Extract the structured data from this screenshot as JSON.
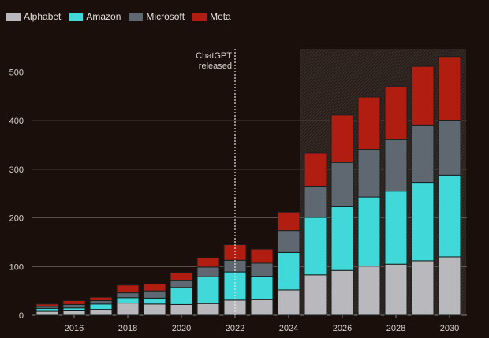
{
  "chart_data": {
    "type": "bar",
    "stacked": true,
    "title": "",
    "xlabel": "",
    "ylabel": "",
    "categories": [
      "2015",
      "2016",
      "2017",
      "2018",
      "2019",
      "2020",
      "2021",
      "2022",
      "2023",
      "2024",
      "2025",
      "2026",
      "2027",
      "2028",
      "2029",
      "2030"
    ],
    "x_tick_labels": [
      "2016",
      "2018",
      "2020",
      "2022",
      "2024",
      "2026",
      "2028",
      "2030"
    ],
    "y_ticks": [
      0,
      100,
      200,
      300,
      400,
      500
    ],
    "ylim": [
      0,
      550
    ],
    "grid": true,
    "legend_position": "top-left",
    "series": [
      {
        "name": "Alphabet",
        "color": "#b9b9bd",
        "values": [
          8,
          9,
          12,
          25,
          23,
          22,
          24,
          31,
          32,
          52,
          83,
          92,
          101,
          105,
          112,
          120
        ]
      },
      {
        "name": "Amazon",
        "color": "#40d8d8",
        "values": [
          6,
          6,
          11,
          11,
          12,
          35,
          55,
          58,
          48,
          77,
          118,
          131,
          142,
          150,
          161,
          168
        ]
      },
      {
        "name": "Microsoft",
        "color": "#5f6870",
        "values": [
          4,
          7,
          7,
          10,
          15,
          14,
          20,
          24,
          27,
          45,
          64,
          91,
          98,
          106,
          117,
          113
        ]
      },
      {
        "name": "Meta",
        "color": "#b21d12",
        "values": [
          5,
          8,
          7,
          16,
          14,
          17,
          19,
          32,
          29,
          38,
          69,
          98,
          108,
          109,
          122,
          131
        ]
      }
    ],
    "annotations": [
      {
        "text": [
          "ChatGPT",
          "released"
        ],
        "x": "2022",
        "style": "dashed vertical line"
      }
    ],
    "shaded_region": {
      "from": "2025",
      "to": "2030",
      "meaning": "forecast"
    }
  }
}
